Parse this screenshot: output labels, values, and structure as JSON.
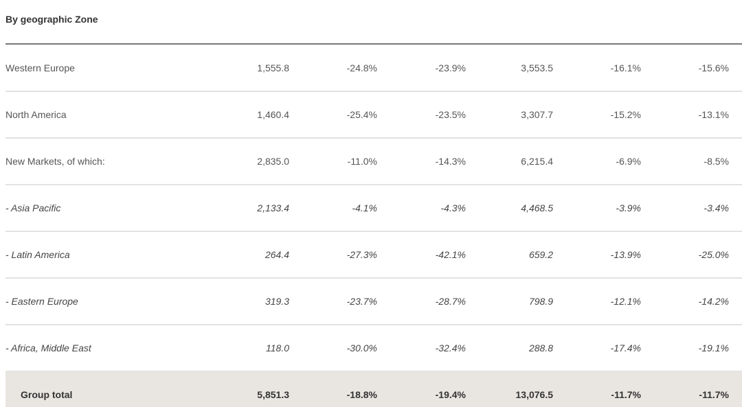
{
  "header": {
    "title": "By geographic Zone"
  },
  "table": {
    "rows": [
      [
        "Western Europe",
        "1,555.8",
        "-24.8%",
        "-23.9%",
        "3,553.5",
        "-16.1%",
        "-15.6%"
      ],
      [
        "North America",
        "1,460.4",
        "-25.4%",
        "-23.5%",
        "3,307.7",
        "-15.2%",
        "-13.1%"
      ],
      [
        "New Markets, of which:",
        "2,835.0",
        "-11.0%",
        "-14.3%",
        "6,215.4",
        "-6.9%",
        "-8.5%"
      ],
      [
        "-  Asia Pacific",
        "2,133.4",
        "-4.1%",
        "-4.3%",
        "4,468.5",
        "-3.9%",
        "-3.4%"
      ],
      [
        "-  Latin America",
        "264.4",
        "-27.3%",
        "-42.1%",
        "659.2",
        "-13.9%",
        "-25.0%"
      ],
      [
        "-  Eastern Europe",
        "319.3",
        "-23.7%",
        "-28.7%",
        "798.9",
        "-12.1%",
        "-14.2%"
      ],
      [
        "-  Africa, Middle East",
        "118.0",
        "-30.0%",
        "-32.4%",
        "288.8",
        "-17.4%",
        "-19.1%"
      ],
      [
        "Group total",
        "5,851.3",
        "-18.8%",
        "-19.4%",
        "13,076.5",
        "-11.7%",
        "-11.7%"
      ]
    ]
  }
}
